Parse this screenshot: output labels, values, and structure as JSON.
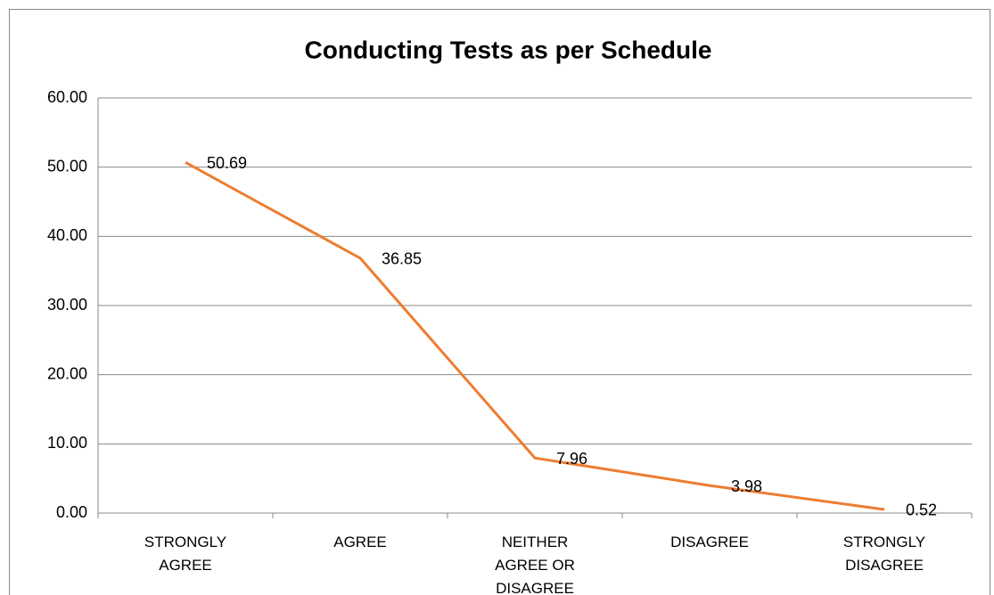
{
  "chart_data": {
    "type": "line",
    "title": "Conducting Tests as per Schedule",
    "categories": [
      "STRONGLY AGREE",
      "AGREE",
      "NEITHER AGREE OR DISAGREE",
      "DISAGREE",
      "STRONGLY DISAGREE"
    ],
    "values": [
      50.69,
      36.85,
      7.96,
      3.98,
      0.52
    ],
    "color": "#ed7d31",
    "ylim": [
      0,
      60
    ],
    "yticks": [
      {
        "value": 0,
        "label": "0.00"
      },
      {
        "value": 10,
        "label": "10.00"
      },
      {
        "value": 20,
        "label": "20.00"
      },
      {
        "value": 30,
        "label": "30.00"
      },
      {
        "value": 40,
        "label": "40.00"
      },
      {
        "value": 50,
        "label": "50.00"
      },
      {
        "value": 60,
        "label": "60.00"
      }
    ],
    "grid": true
  }
}
